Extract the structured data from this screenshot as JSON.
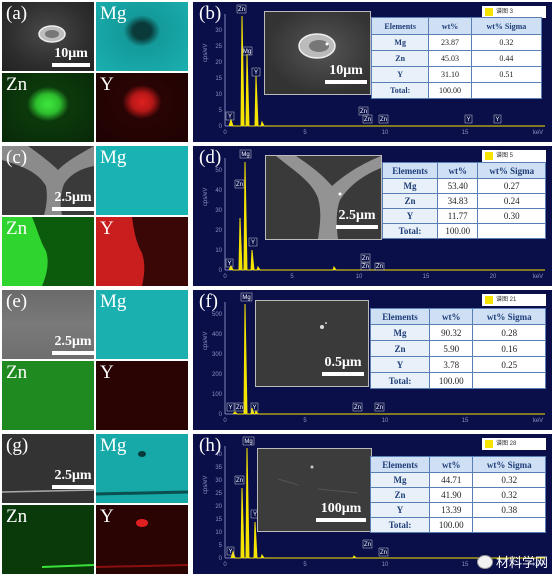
{
  "watermark": {
    "text": "材料学网",
    "icon": "wechat-logo-icon"
  },
  "rows": [
    {
      "map_labels": [
        "(a)",
        "Mg",
        "Zn",
        "Y"
      ],
      "map_scale": "10μm",
      "panel_label": "(b)",
      "legend": "谱图 3",
      "inset_scale": "10μm",
      "table": {
        "headers": [
          "Elements",
          "wt%",
          "wt% Sigma"
        ],
        "rows": [
          [
            "Mg",
            "23.87",
            "0.32"
          ],
          [
            "Zn",
            "45.03",
            "0.44"
          ],
          [
            "Y",
            "31.10",
            "0.51"
          ],
          [
            "Total:",
            "100.00",
            ""
          ]
        ]
      },
      "y_axis_label": "cps/eV",
      "x_axis_label": "keV",
      "y_ticks": [
        "0",
        "5",
        "10",
        "15",
        "20",
        "25",
        "30"
      ],
      "x_ticks": [
        "0",
        "5",
        "10",
        "15"
      ],
      "peak_labels": [
        "Zn",
        "Mg",
        "Y",
        "Y",
        "Zn",
        "Zn",
        "Zn",
        "Y",
        "Y"
      ]
    },
    {
      "map_labels": [
        "(c)",
        "Mg",
        "Zn",
        "Y"
      ],
      "map_scale": "2.5μm",
      "panel_label": "(d)",
      "legend": "谱图 5",
      "inset_scale": "2.5μm",
      "table": {
        "headers": [
          "Elements",
          "wt%",
          "wt% Sigma"
        ],
        "rows": [
          [
            "Mg",
            "53.40",
            "0.27"
          ],
          [
            "Zn",
            "34.83",
            "0.24"
          ],
          [
            "Y",
            "11.77",
            "0.30"
          ],
          [
            "Total:",
            "100.00",
            ""
          ]
        ]
      },
      "y_axis_label": "cps/eV",
      "x_axis_label": "keV",
      "y_ticks": [
        "0",
        "10",
        "20",
        "30",
        "40",
        "50"
      ],
      "x_ticks": [
        "0",
        "5",
        "10",
        "15",
        "20"
      ],
      "peak_labels": [
        "Mg",
        "Zn",
        "Y",
        "Y",
        "Zn",
        "Zn",
        "Zn"
      ]
    },
    {
      "map_labels": [
        "(e)",
        "Mg",
        "Zn",
        "Y"
      ],
      "map_scale": "2.5μm",
      "panel_label": "(f)",
      "legend": "谱图 21",
      "inset_scale": "0.5μm",
      "table": {
        "headers": [
          "Elements",
          "wt%",
          "wt% Sigma"
        ],
        "rows": [
          [
            "Mg",
            "90.32",
            "0.28"
          ],
          [
            "Zn",
            "5.90",
            "0.16"
          ],
          [
            "Y",
            "3.78",
            "0.25"
          ],
          [
            "Total:",
            "100.00",
            ""
          ]
        ]
      },
      "y_axis_label": "cps/eV",
      "x_axis_label": "keV",
      "y_ticks": [
        "0",
        "100",
        "200",
        "300",
        "400",
        "500"
      ],
      "x_ticks": [
        "0",
        "5",
        "10",
        "15"
      ],
      "peak_labels": [
        "Mg",
        "Y",
        "Zn",
        "Y",
        "Zn",
        "Zn"
      ]
    },
    {
      "map_labels": [
        "(g)",
        "Mg",
        "Zn",
        "Y"
      ],
      "map_scale": "2.5μm",
      "panel_label": "(h)",
      "legend": "谱图 28",
      "inset_scale": "100μm",
      "table": {
        "headers": [
          "Elements",
          "wt%",
          "wt% Sigma"
        ],
        "rows": [
          [
            "Mg",
            "44.71",
            "0.32"
          ],
          [
            "Zn",
            "41.90",
            "0.32"
          ],
          [
            "Y",
            "13.39",
            "0.38"
          ],
          [
            "Total:",
            "100.00",
            ""
          ]
        ]
      },
      "y_axis_label": "cps/eV",
      "x_axis_label": "keV",
      "y_ticks": [
        "0",
        "5",
        "10",
        "15",
        "20",
        "25",
        "30",
        "35",
        "40"
      ],
      "x_ticks": [
        "0",
        "5",
        "10",
        "15"
      ],
      "peak_labels": [
        "Mg",
        "Zn",
        "Y",
        "Y",
        "Zn",
        "Zn"
      ]
    }
  ]
}
